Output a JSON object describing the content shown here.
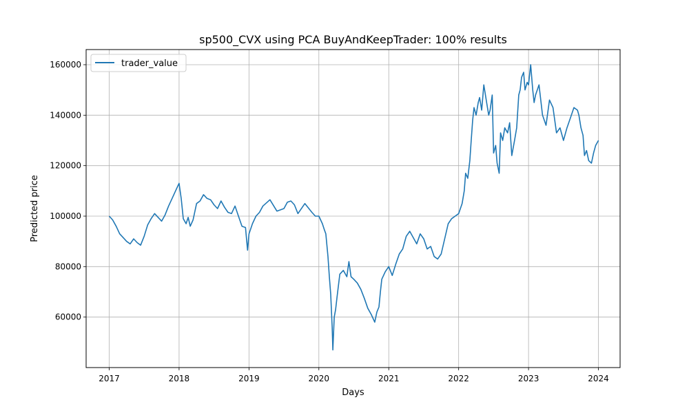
{
  "chart_data": {
    "type": "line",
    "title": "sp500_CVX using PCA BuyAndKeepTrader: 100% results",
    "xlabel": "Days",
    "ylabel": "Predicted price",
    "xlim": [
      2016.67,
      2024.31
    ],
    "ylim": [
      40000,
      166000
    ],
    "x_ticks": [
      2017,
      2018,
      2019,
      2020,
      2021,
      2022,
      2023,
      2024
    ],
    "x_tick_labels": [
      "2017",
      "2018",
      "2019",
      "2020",
      "2021",
      "2022",
      "2023",
      "2024"
    ],
    "y_ticks": [
      60000,
      80000,
      100000,
      120000,
      140000,
      160000
    ],
    "y_tick_labels": [
      "60000",
      "80000",
      "100000",
      "120000",
      "140000",
      "160000"
    ],
    "grid": true,
    "legend_position": "top-left",
    "color": "#1f77b4",
    "series": [
      {
        "name": "trader_value",
        "x": [
          2017.0,
          2017.05,
          2017.1,
          2017.15,
          2017.2,
          2017.25,
          2017.3,
          2017.35,
          2017.4,
          2017.45,
          2017.5,
          2017.55,
          2017.6,
          2017.65,
          2017.7,
          2017.75,
          2017.8,
          2017.85,
          2017.9,
          2017.95,
          2018.0,
          2018.03,
          2018.06,
          2018.1,
          2018.13,
          2018.16,
          2018.2,
          2018.25,
          2018.3,
          2018.35,
          2018.4,
          2018.45,
          2018.5,
          2018.55,
          2018.6,
          2018.65,
          2018.7,
          2018.75,
          2018.8,
          2018.85,
          2018.9,
          2018.95,
          2018.98,
          2019.0,
          2019.05,
          2019.1,
          2019.15,
          2019.2,
          2019.3,
          2019.4,
          2019.5,
          2019.55,
          2019.6,
          2019.65,
          2019.7,
          2019.8,
          2019.9,
          2019.95,
          2020.0,
          2020.05,
          2020.08,
          2020.1,
          2020.13,
          2020.15,
          2020.17,
          2020.19,
          2020.2,
          2020.22,
          2020.24,
          2020.26,
          2020.3,
          2020.35,
          2020.4,
          2020.43,
          2020.46,
          2020.5,
          2020.55,
          2020.6,
          2020.65,
          2020.7,
          2020.75,
          2020.8,
          2020.83,
          2020.86,
          2020.88,
          2020.9,
          2020.95,
          2021.0,
          2021.05,
          2021.1,
          2021.15,
          2021.2,
          2021.25,
          2021.3,
          2021.4,
          2021.45,
          2021.5,
          2021.55,
          2021.6,
          2021.65,
          2021.7,
          2021.75,
          2021.8,
          2021.85,
          2021.9,
          2021.95,
          2022.0,
          2022.05,
          2022.08,
          2022.1,
          2022.13,
          2022.16,
          2022.18,
          2022.2,
          2022.22,
          2022.25,
          2022.28,
          2022.3,
          2022.33,
          2022.36,
          2022.4,
          2022.43,
          2022.45,
          2022.48,
          2022.5,
          2022.53,
          2022.55,
          2022.58,
          2022.6,
          2022.63,
          2022.66,
          2022.7,
          2022.73,
          2022.76,
          2022.8,
          2022.83,
          2022.86,
          2022.88,
          2022.9,
          2022.93,
          2022.95,
          2022.98,
          2023.0,
          2023.03,
          2023.06,
          2023.08,
          2023.1,
          2023.15,
          2023.2,
          2023.25,
          2023.3,
          2023.35,
          2023.4,
          2023.45,
          2023.5,
          2023.55,
          2023.6,
          2023.65,
          2023.7,
          2023.72,
          2023.75,
          2023.78,
          2023.8,
          2023.83,
          2023.86,
          2023.9,
          2023.93,
          2023.96,
          2024.0
        ],
        "y": [
          100000,
          98500,
          96000,
          93000,
          91500,
          90000,
          89000,
          91000,
          89500,
          88500,
          92000,
          96500,
          99000,
          101000,
          99500,
          98000,
          100500,
          104000,
          107000,
          110000,
          113000,
          107000,
          99000,
          97000,
          99500,
          96000,
          98500,
          105000,
          106000,
          108500,
          107000,
          106500,
          104500,
          103000,
          106000,
          103500,
          101500,
          101000,
          104000,
          100000,
          96000,
          95500,
          86500,
          93000,
          97000,
          100000,
          101500,
          104000,
          106500,
          102000,
          103000,
          105500,
          106000,
          104500,
          101000,
          105000,
          101500,
          100000,
          100000,
          97000,
          94500,
          93000,
          84000,
          76000,
          69000,
          56000,
          47000,
          60000,
          63000,
          68000,
          77000,
          78500,
          76000,
          82000,
          76000,
          75000,
          73500,
          71000,
          67500,
          63500,
          61000,
          58000,
          62000,
          64000,
          70000,
          75000,
          78000,
          80000,
          76500,
          81000,
          85000,
          87000,
          92000,
          94000,
          89000,
          93000,
          91000,
          87000,
          88000,
          84000,
          83000,
          85000,
          91000,
          97000,
          99000,
          100000,
          101000,
          105000,
          110000,
          117000,
          115000,
          122000,
          130000,
          138000,
          143000,
          140000,
          145000,
          147000,
          142000,
          152000,
          145000,
          140000,
          142000,
          148000,
          125000,
          128000,
          121000,
          117000,
          133000,
          130000,
          135000,
          133000,
          137000,
          124000,
          130000,
          135000,
          148000,
          150000,
          155000,
          157000,
          150000,
          153000,
          152000,
          160000,
          150000,
          145000,
          148000,
          152000,
          140000,
          136000,
          146000,
          143000,
          133000,
          135000,
          130000,
          135000,
          139000,
          143000,
          142000,
          140000,
          135000,
          132000,
          124000,
          126000,
          122000,
          121000,
          125000,
          128000,
          130000
        ]
      }
    ]
  }
}
